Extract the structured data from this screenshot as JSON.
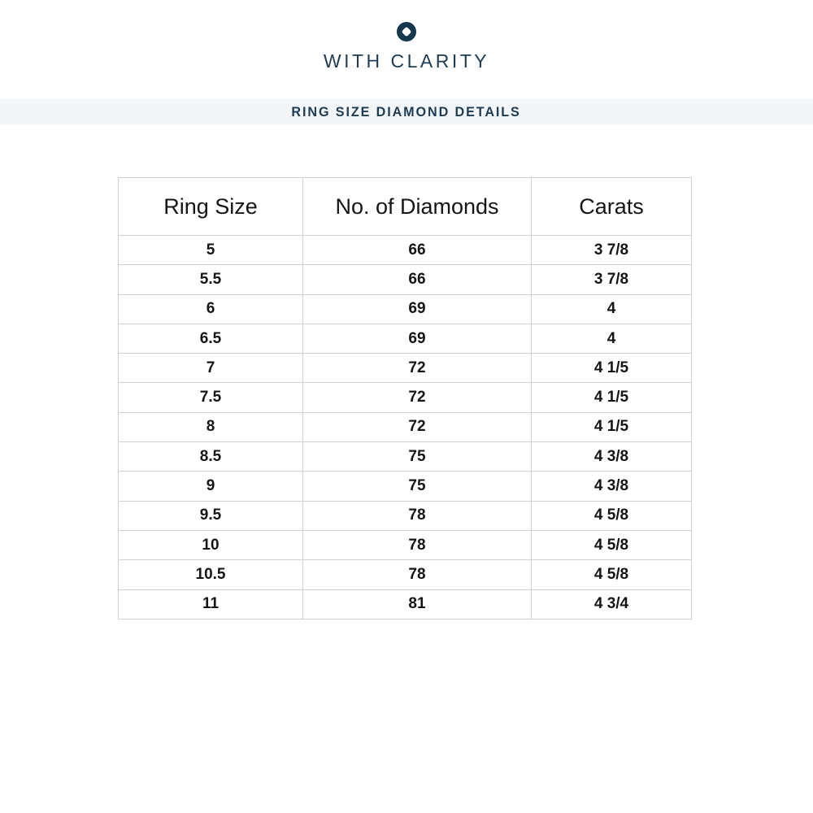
{
  "brand": {
    "name": "WITH CLARITY",
    "logo_icon": "diamond-in-circle-icon"
  },
  "banner": {
    "title": "RING SIZE DIAMOND DETAILS"
  },
  "colors": {
    "brand_navy": "#1d3c53",
    "logo_circle": "#16384e",
    "banner_background": "#f2f6f8",
    "table_border": "#d2d2d2",
    "table_text": "#151515",
    "page_background": "#ffffff"
  },
  "chart_data": {
    "type": "table",
    "title": "Ring Size Diamond Details",
    "columns": [
      "Ring Size",
      "No. of Diamonds",
      "Carats"
    ],
    "rows": [
      [
        "5",
        "66",
        "3 7/8"
      ],
      [
        "5.5",
        "66",
        "3 7/8"
      ],
      [
        "6",
        "69",
        "4"
      ],
      [
        "6.5",
        "69",
        "4"
      ],
      [
        "7",
        "72",
        "4 1/5"
      ],
      [
        "7.5",
        "72",
        "4 1/5"
      ],
      [
        "8",
        "72",
        "4 1/5"
      ],
      [
        "8.5",
        "75",
        "4 3/8"
      ],
      [
        "9",
        "75",
        "4 3/8"
      ],
      [
        "9.5",
        "78",
        "4 5/8"
      ],
      [
        "10",
        "78",
        "4 5/8"
      ],
      [
        "10.5",
        "78",
        "4 5/8"
      ],
      [
        "11",
        "81",
        "4 3/4"
      ]
    ]
  }
}
